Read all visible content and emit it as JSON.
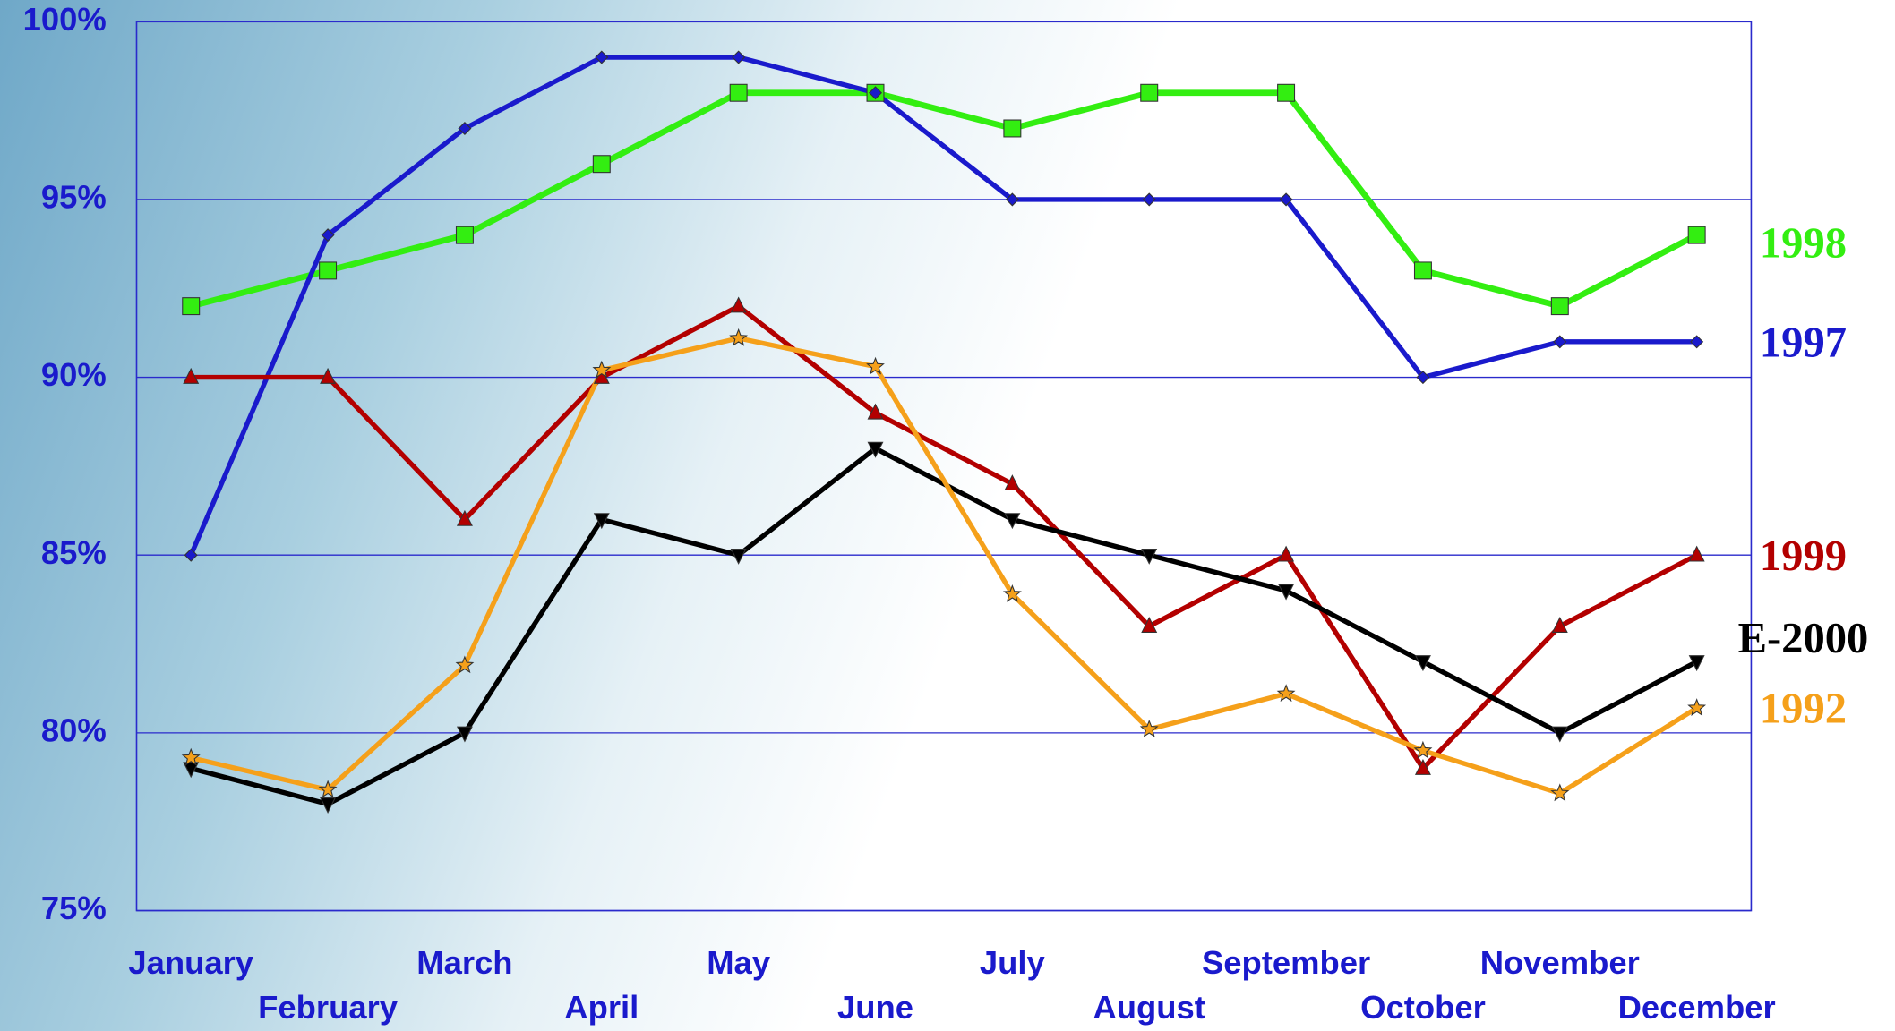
{
  "chart_data": {
    "type": "line",
    "categories": [
      "January",
      "February",
      "March",
      "April",
      "May",
      "June",
      "July",
      "August",
      "September",
      "October",
      "November",
      "December"
    ],
    "ylim": [
      75,
      100
    ],
    "yticks": [
      {
        "value": 75,
        "label": "75%"
      },
      {
        "value": 80,
        "label": "80%"
      },
      {
        "value": 85,
        "label": "85%"
      },
      {
        "value": 90,
        "label": "90%"
      },
      {
        "value": 95,
        "label": "95%"
      },
      {
        "value": 100,
        "label": "100%"
      }
    ],
    "grid": true,
    "series": [
      {
        "name": "1998",
        "color": "#33ee11",
        "marker": "square",
        "values": [
          92,
          93,
          94,
          96,
          98,
          98,
          97,
          98,
          98,
          93,
          92,
          94
        ]
      },
      {
        "name": "1997",
        "color": "#1a1acc",
        "marker": "diamond",
        "values": [
          85,
          94,
          97,
          99,
          99,
          98,
          95,
          95,
          95,
          90,
          91,
          91
        ]
      },
      {
        "name": "1999",
        "color": "#b30000",
        "marker": "triangle",
        "values": [
          90,
          90,
          86,
          90,
          92,
          89,
          87,
          83,
          85,
          79,
          83,
          85
        ]
      },
      {
        "name": "E-2000",
        "color": "#000000",
        "marker": "triangle-down",
        "values": [
          79,
          78,
          80,
          86,
          85,
          88,
          86,
          85,
          84,
          82,
          80,
          82
        ]
      },
      {
        "name": "1992",
        "color": "#f5a01a",
        "marker": "star",
        "values": [
          79.3,
          78.4,
          81.9,
          90.2,
          91.1,
          90.3,
          83.9,
          80.1,
          81.1,
          79.5,
          78.3,
          80.7
        ]
      }
    ]
  }
}
